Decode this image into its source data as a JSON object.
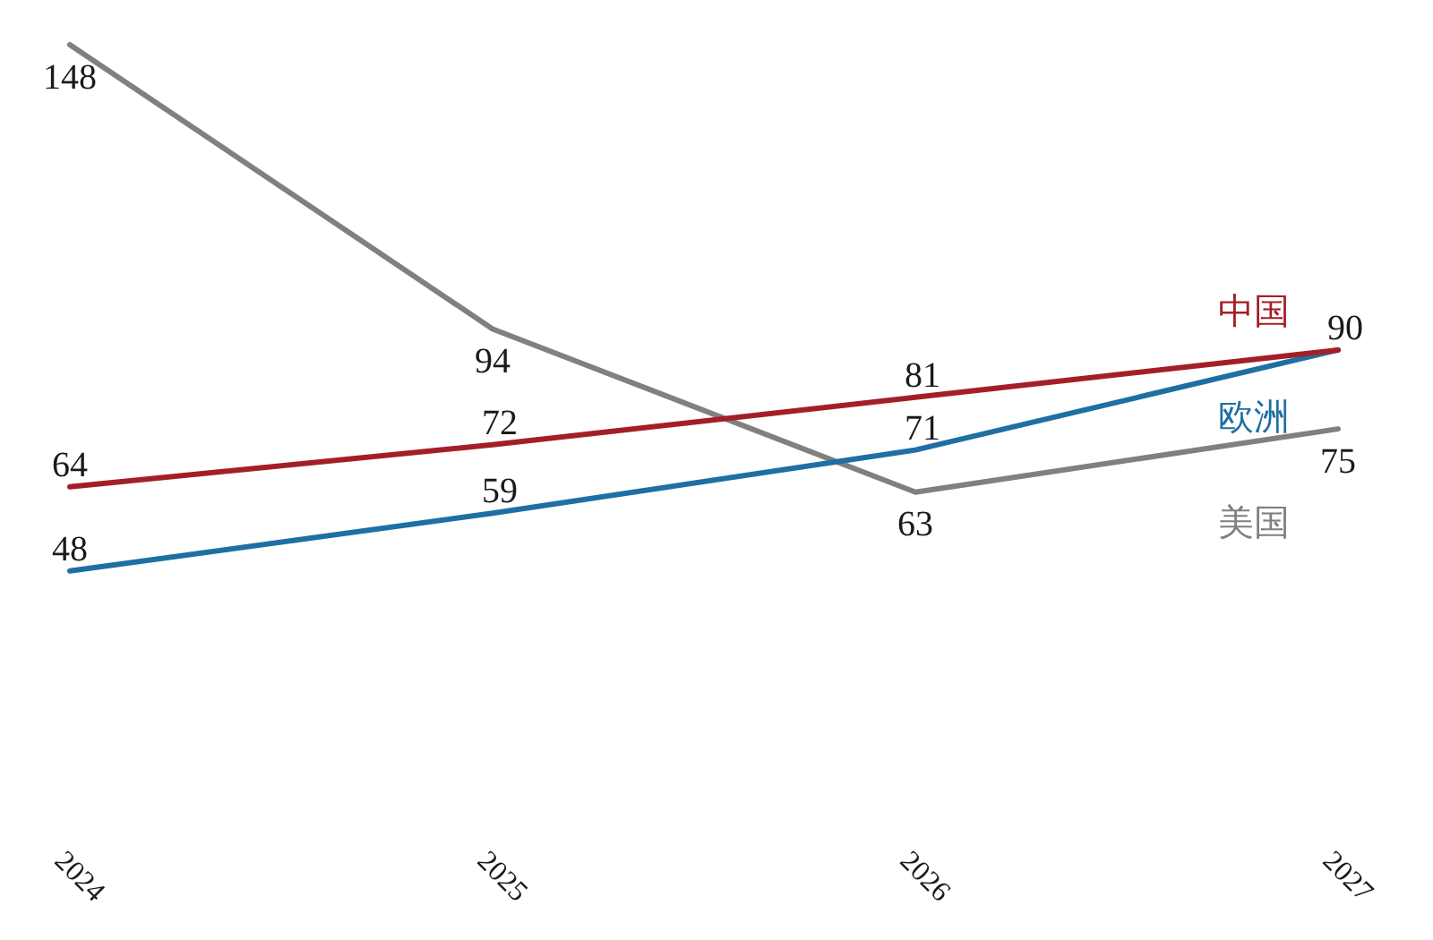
{
  "chart_data": {
    "type": "line",
    "categories": [
      "2024",
      "2025",
      "2026",
      "2027"
    ],
    "series": [
      {
        "name": "中国",
        "color": "#a31f28",
        "values": [
          64,
          72,
          81,
          90
        ],
        "value_labels": [
          "64",
          "72",
          "81",
          "90"
        ]
      },
      {
        "name": "欧洲",
        "color": "#1f6fa3",
        "values": [
          48,
          59,
          71,
          90
        ],
        "value_labels": [
          "48",
          "59",
          "71",
          null
        ]
      },
      {
        "name": "美国",
        "color": "#808080",
        "values": [
          148,
          94,
          63,
          75
        ],
        "value_labels": [
          "148",
          "94",
          "63",
          "75"
        ]
      }
    ],
    "legend": false,
    "grid": false,
    "marker": "none",
    "line_style": "solid"
  }
}
